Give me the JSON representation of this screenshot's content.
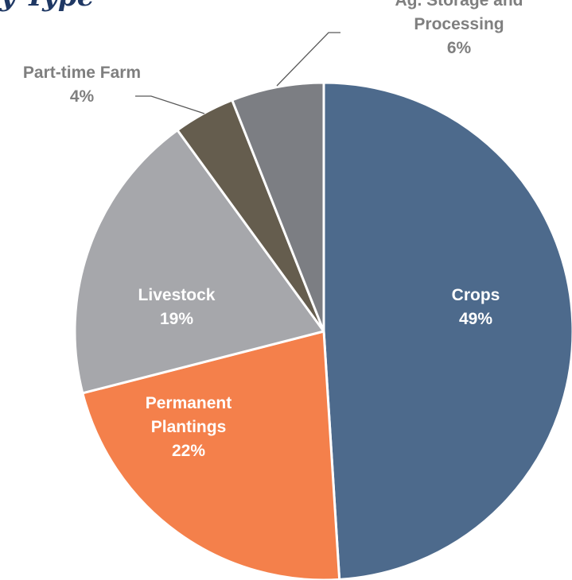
{
  "title_fragment": "y Type",
  "chart_data": {
    "type": "pie",
    "start_angle_deg": 0,
    "direction": "clockwise",
    "legend": "none",
    "slices": [
      {
        "label_lines": [
          "Crops"
        ],
        "value_label": "49%",
        "value": 49,
        "color": "#4d6a8c",
        "label_color": "#ffffff"
      },
      {
        "label_lines": [
          "Permanent",
          "Plantings"
        ],
        "value_label": "22%",
        "value": 22,
        "color": "#f4804b",
        "label_color": "#ffffff"
      },
      {
        "label_lines": [
          "Livestock"
        ],
        "value_label": "19%",
        "value": 19,
        "color": "#a6a7ab",
        "label_color": "#ffffff"
      },
      {
        "label_lines": [
          "Part-time Farm"
        ],
        "value_label": "4%",
        "value": 4,
        "color": "#655d4e",
        "label_color": "#7f7f7f"
      },
      {
        "label_lines": [
          "Ag. Storage and",
          "Processing"
        ],
        "value_label": "6%",
        "value": 6,
        "color": "#7c7e83",
        "label_color": "#7f7f7f"
      }
    ]
  }
}
